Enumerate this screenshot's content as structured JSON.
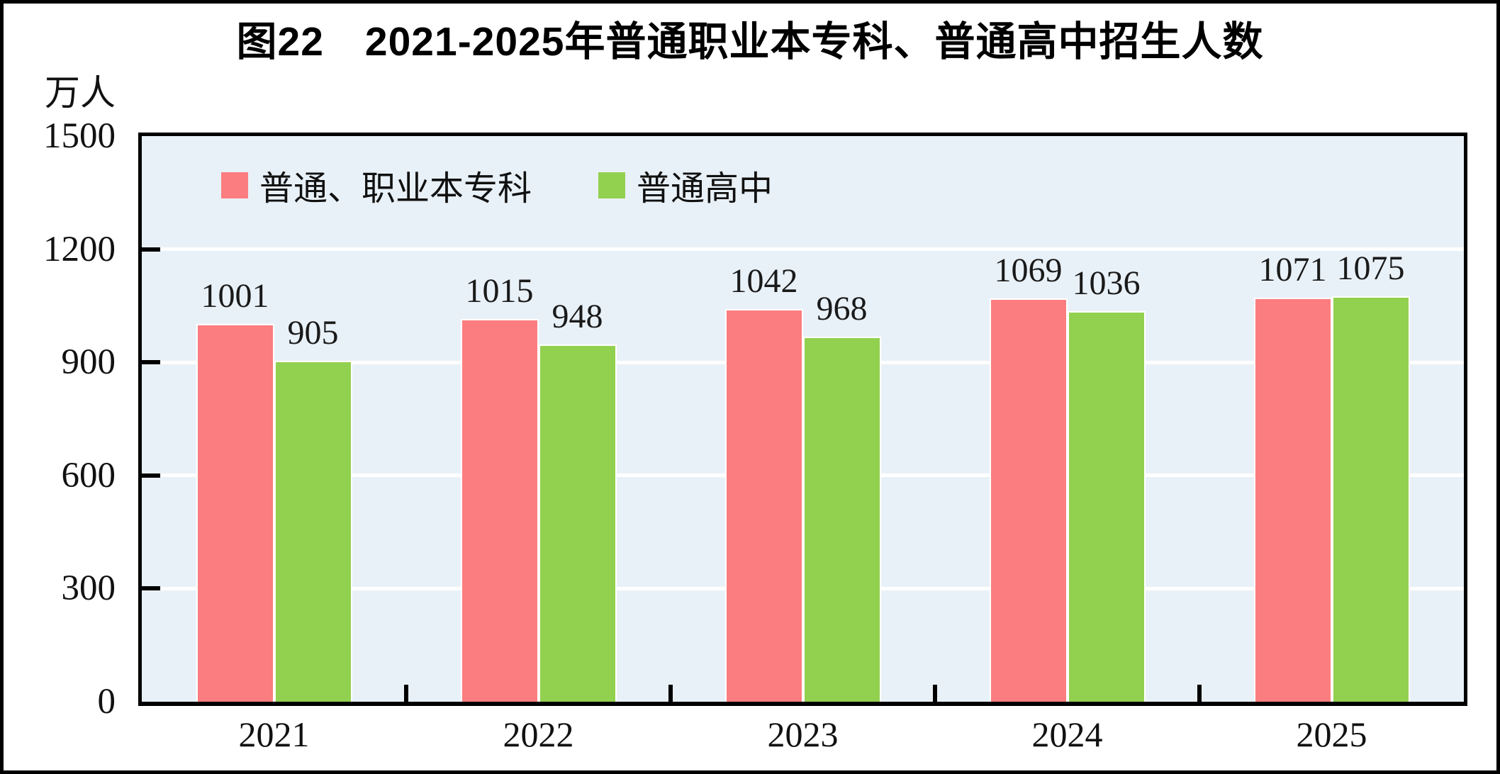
{
  "figure": {
    "title": "图22　2021-2025年普通职业本专科、普通高中招生人数",
    "unit_label": "万人"
  },
  "colors": {
    "series1_pink": "#fb7d7f",
    "series2_green": "#92d050",
    "plot_background": "#e9f1f8",
    "gridline": "#ffffff",
    "frame": "#000000",
    "label_text": "#1a1a1a"
  },
  "chart_data": {
    "type": "bar",
    "title": "图22　2021-2025年普通职业本专科、普通高中招生人数",
    "unit": "万人",
    "categories": [
      "2021",
      "2022",
      "2023",
      "2024",
      "2025"
    ],
    "series": [
      {
        "name": "普通、职业本专科",
        "color": "#fb7d7f",
        "values": [
          1001,
          1015,
          1042,
          1069,
          1071
        ]
      },
      {
        "name": "普通高中",
        "color": "#92d050",
        "values": [
          905,
          948,
          968,
          1036,
          1075
        ]
      }
    ],
    "ylabel": "万人",
    "xlabel": "",
    "ylim": [
      0,
      1500
    ],
    "yticks": [
      0,
      300,
      600,
      900,
      1200,
      1500
    ],
    "grid": "horizontal white gridlines at each ytick",
    "legend_position": "top-left inside plot",
    "bar_labels": "values shown above each bar"
  }
}
